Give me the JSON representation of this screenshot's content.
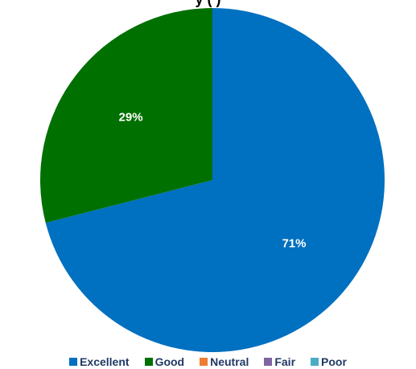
{
  "chart_data": {
    "type": "pie",
    "title": "y (                    )",
    "categories": [
      "Excellent",
      "Good",
      "Neutral",
      "Fair",
      "Poor"
    ],
    "values": [
      71,
      29,
      0,
      0,
      0
    ],
    "data_labels": [
      "71%",
      "29%",
      "",
      "",
      ""
    ],
    "colors": [
      "#0070c0",
      "#007000",
      "#ed7d31",
      "#8064a2",
      "#4bacc6"
    ],
    "legend_position": "bottom"
  }
}
